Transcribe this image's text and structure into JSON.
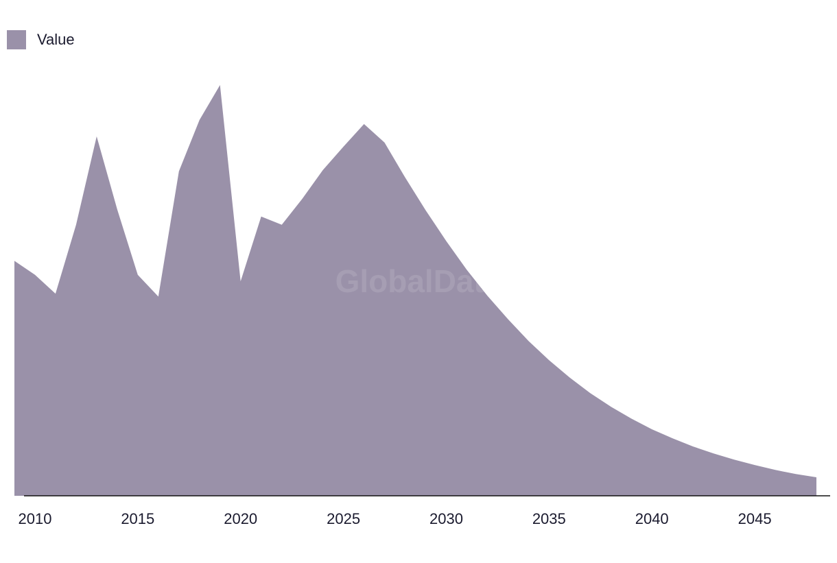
{
  "chart_data": {
    "type": "area",
    "title": "",
    "xlabel": "",
    "ylabel": "",
    "x": [
      2009,
      2010,
      2011,
      2012,
      2013,
      2014,
      2015,
      2016,
      2017,
      2018,
      2019,
      2020,
      2021,
      2022,
      2023,
      2024,
      2025,
      2026,
      2027,
      2028,
      2029,
      2030,
      2031,
      2032,
      2033,
      2034,
      2035,
      2036,
      2037,
      2038,
      2039,
      2040,
      2041,
      2042,
      2043,
      2044,
      2045,
      2046,
      2047,
      2048
    ],
    "series": [
      {
        "name": "Value",
        "color": "#9a91a9",
        "values": [
          57.2,
          53.8,
          49.2,
          66.0,
          87.5,
          69.7,
          53.8,
          48.5,
          79.0,
          91.5,
          100.0,
          52.2,
          68.0,
          66.0,
          72.3,
          79.3,
          85.0,
          90.5,
          86.0,
          77.5,
          69.5,
          62.0,
          55.0,
          48.7,
          43.0,
          37.7,
          33.0,
          28.8,
          25.0,
          21.7,
          18.8,
          16.2,
          14.0,
          12.0,
          10.3,
          8.8,
          7.5,
          6.3,
          5.3,
          4.5
        ]
      }
    ],
    "xticks": [
      "2010",
      "2015",
      "2020",
      "2025",
      "2030",
      "2035",
      "2040",
      "2045"
    ],
    "xtick_values": [
      2010,
      2015,
      2020,
      2025,
      2030,
      2035,
      2040,
      2045
    ],
    "xlim": [
      2008.3,
      2049
    ],
    "ylim": [
      0,
      100
    ],
    "grid": false,
    "legend": "top-left",
    "watermark": "GlobalData"
  }
}
